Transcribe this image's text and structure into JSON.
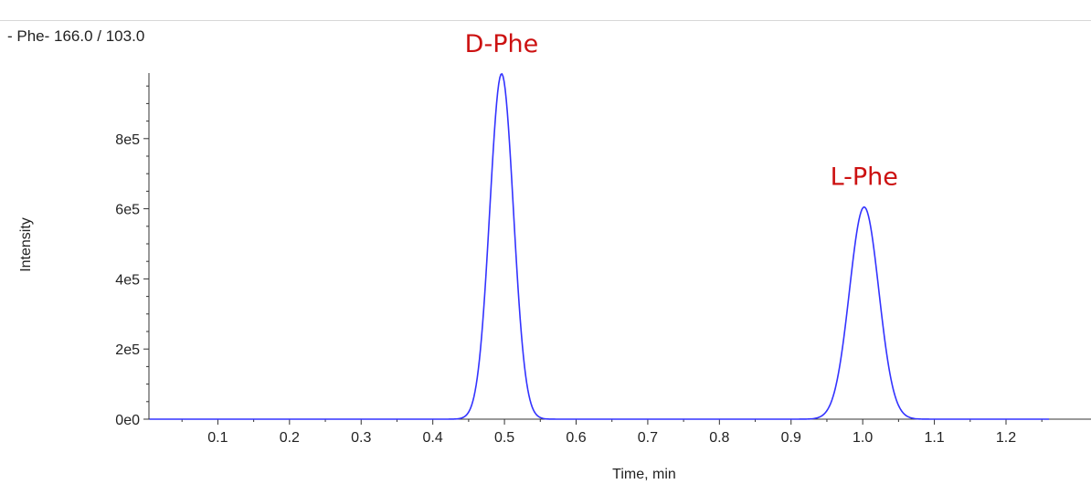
{
  "chart_data": {
    "type": "line",
    "title": "- Phe- 166.0 / 103.0",
    "xlabel": "Time, min",
    "ylabel": "Intensity",
    "xlim": [
      0.0,
      1.26
    ],
    "ylim": [
      0,
      1000000
    ],
    "x_ticks": [
      0.1,
      0.2,
      0.3,
      0.4,
      0.5,
      0.6,
      0.7,
      0.8,
      0.9,
      1.0,
      1.1,
      1.2
    ],
    "x_tick_labels": [
      "0.1",
      "0.2",
      "0.3",
      "0.4",
      "0.5",
      "0.6",
      "0.7",
      "0.8",
      "0.9",
      "1.0",
      "1.1",
      "1.2"
    ],
    "y_ticks": [
      0,
      200000,
      400000,
      600000,
      800000
    ],
    "y_tick_labels": [
      "0e0",
      "2e5",
      "4e5",
      "6e5",
      "8e5"
    ],
    "grid": false,
    "series": [
      {
        "color": "#3333ff",
        "peaks": [
          {
            "center": 0.496,
            "height": 985000,
            "sigma": 0.0165
          },
          {
            "center": 1.002,
            "height": 605000,
            "sigma": 0.0205
          }
        ]
      }
    ],
    "annotations": [
      {
        "text": "D-Phe",
        "x": 0.496,
        "y": 985000,
        "color": "#cc1111"
      },
      {
        "text": "L-Phe",
        "x": 1.002,
        "y": 605000,
        "color": "#cc1111"
      }
    ]
  }
}
